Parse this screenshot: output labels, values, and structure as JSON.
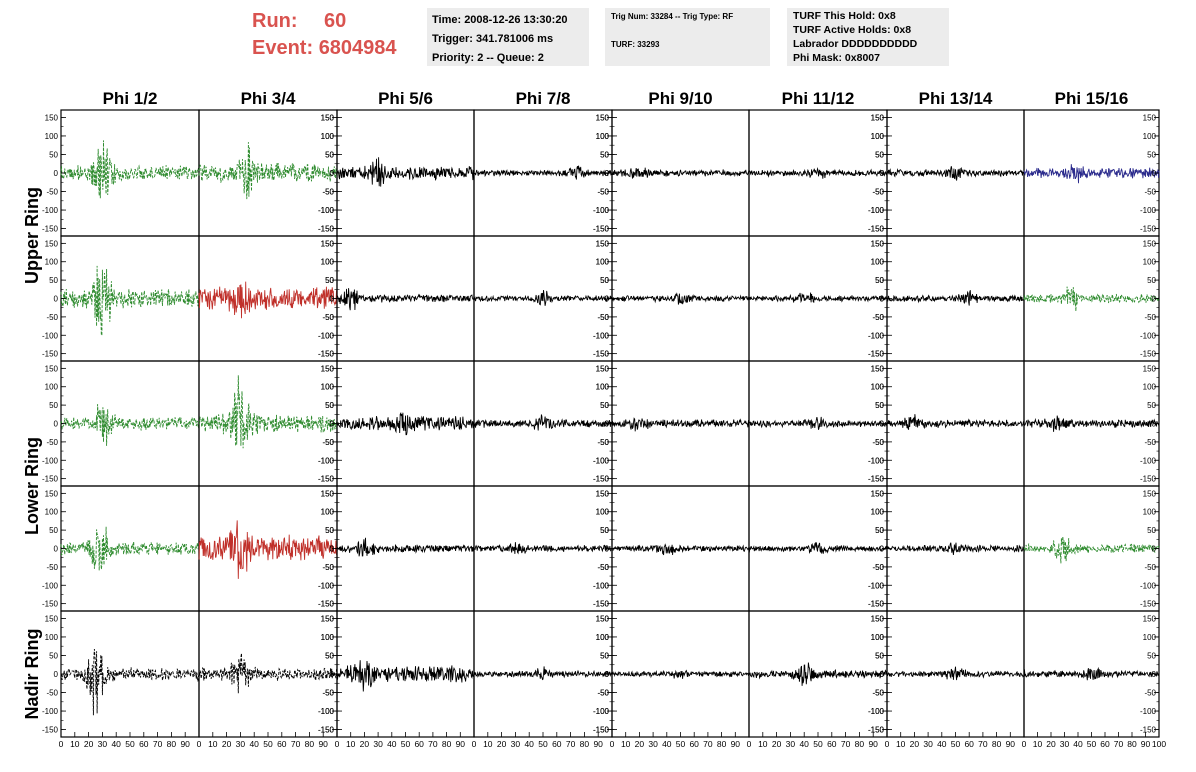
{
  "header": {
    "run_label": "Run:",
    "run_value": "60",
    "event_label": "Event:",
    "event_value": "6804984",
    "time": "Time: 2008-12-26 13:30:20",
    "trigger": "Trigger: 341.781006 ms",
    "priority": "Priority: 2 -- Queue: 2",
    "trig_num": "Trig Num: 33284 -- Trig Type: RF",
    "turf": "TURF: 33293",
    "turf_this_hold": "TURF This Hold: 0x8",
    "turf_active_holds": "TURF Active Holds: 0x8",
    "labrador": "Labrador DDDDDDDDDD",
    "phi_mask": "Phi Mask: 0x8007"
  },
  "chart_data": {
    "type": "line",
    "columns": [
      "Phi 1/2",
      "Phi 3/4",
      "Phi 5/6",
      "Phi 7/8",
      "Phi 9/10",
      "Phi 11/12",
      "Phi 13/14",
      "Phi 15/16"
    ],
    "row_labels": [
      "Upper Ring",
      "",
      "Lower Ring",
      "",
      "Nadir Ring"
    ],
    "row_label_spans": [
      {
        "label": "Upper Ring",
        "from_row": 0,
        "to_row": 1
      },
      {
        "label": "Lower Ring",
        "from_row": 2,
        "to_row": 3
      },
      {
        "label": "Nadir Ring",
        "from_row": 4,
        "to_row": 4
      }
    ],
    "xlim": [
      0,
      100
    ],
    "ylim": [
      -170,
      170
    ],
    "x_ticks": [
      "0",
      "10",
      "20",
      "30",
      "40",
      "50",
      "60",
      "70",
      "80",
      "90",
      "100"
    ],
    "y_ticks": [
      "150",
      "100",
      "50",
      "0",
      "-50",
      "-100",
      "-150"
    ],
    "y_tick_values": [
      150,
      100,
      50,
      0,
      -50,
      -100,
      -150
    ],
    "colors": {
      "trigger_dashed": "#2e8b2e",
      "this_hold": "#c0302a",
      "blue": "#2a2a8c",
      "normal": "#000000",
      "nadir_dashed": "#000000"
    },
    "cells": [
      [
        {
          "color": "trigger_dashed",
          "dashed": true,
          "amp": 22,
          "peak": 130,
          "peak_x": 30
        },
        {
          "color": "trigger_dashed",
          "dashed": true,
          "amp": 30,
          "peak": 90,
          "peak_x": 35
        },
        {
          "color": "normal",
          "dashed": false,
          "amp": 20,
          "peak": 50,
          "peak_x": 30
        },
        {
          "color": "normal",
          "dashed": false,
          "amp": 9,
          "peak": 25,
          "peak_x": 75
        },
        {
          "color": "normal",
          "dashed": false,
          "amp": 10,
          "peak": 25,
          "peak_x": 20
        },
        {
          "color": "normal",
          "dashed": false,
          "amp": 9,
          "peak": 20,
          "peak_x": 50
        },
        {
          "color": "normal",
          "dashed": false,
          "amp": 10,
          "peak": 25,
          "peak_x": 50
        },
        {
          "color": "blue",
          "dashed": false,
          "amp": 15,
          "peak": 40,
          "peak_x": 40
        }
      ],
      [
        {
          "color": "trigger_dashed",
          "dashed": true,
          "amp": 28,
          "peak": 150,
          "peak_x": 30
        },
        {
          "color": "this_hold",
          "dashed": false,
          "amp": 35,
          "peak": 80,
          "peak_x": 30
        },
        {
          "color": "normal",
          "dashed": false,
          "amp": 12,
          "peak": 40,
          "peak_x": 10
        },
        {
          "color": "normal",
          "dashed": false,
          "amp": 9,
          "peak": 25,
          "peak_x": 50
        },
        {
          "color": "normal",
          "dashed": false,
          "amp": 9,
          "peak": 25,
          "peak_x": 50
        },
        {
          "color": "normal",
          "dashed": false,
          "amp": 9,
          "peak": 25,
          "peak_x": 40
        },
        {
          "color": "normal",
          "dashed": false,
          "amp": 9,
          "peak": 25,
          "peak_x": 60
        },
        {
          "color": "trigger_dashed",
          "dashed": true,
          "amp": 13,
          "peak": 50,
          "peak_x": 35
        }
      ],
      [
        {
          "color": "trigger_dashed",
          "dashed": true,
          "amp": 20,
          "peak": 80,
          "peak_x": 30
        },
        {
          "color": "trigger_dashed",
          "dashed": true,
          "amp": 30,
          "peak": 150,
          "peak_x": 30
        },
        {
          "color": "normal",
          "dashed": false,
          "amp": 22,
          "peak": 50,
          "peak_x": 50
        },
        {
          "color": "normal",
          "dashed": false,
          "amp": 12,
          "peak": 30,
          "peak_x": 50
        },
        {
          "color": "normal",
          "dashed": false,
          "amp": 12,
          "peak": 25,
          "peak_x": 20
        },
        {
          "color": "normal",
          "dashed": false,
          "amp": 10,
          "peak": 25,
          "peak_x": 50
        },
        {
          "color": "normal",
          "dashed": false,
          "amp": 12,
          "peak": 30,
          "peak_x": 20
        },
        {
          "color": "normal",
          "dashed": false,
          "amp": 12,
          "peak": 30,
          "peak_x": 25
        }
      ],
      [
        {
          "color": "trigger_dashed",
          "dashed": true,
          "amp": 20,
          "peak": 120,
          "peak_x": 28
        },
        {
          "color": "this_hold",
          "dashed": false,
          "amp": 40,
          "peak": 100,
          "peak_x": 30
        },
        {
          "color": "normal",
          "dashed": false,
          "amp": 12,
          "peak": 35,
          "peak_x": 20
        },
        {
          "color": "normal",
          "dashed": false,
          "amp": 10,
          "peak": 25,
          "peak_x": 30
        },
        {
          "color": "normal",
          "dashed": false,
          "amp": 9,
          "peak": 25,
          "peak_x": 40
        },
        {
          "color": "normal",
          "dashed": false,
          "amp": 9,
          "peak": 25,
          "peak_x": 50
        },
        {
          "color": "normal",
          "dashed": false,
          "amp": 10,
          "peak": 25,
          "peak_x": 50
        },
        {
          "color": "trigger_dashed",
          "dashed": true,
          "amp": 14,
          "peak": 60,
          "peak_x": 28
        }
      ],
      [
        {
          "color": "nadir_dashed",
          "dashed": true,
          "amp": 20,
          "peak": 130,
          "peak_x": 25
        },
        {
          "color": "nadir_dashed",
          "dashed": true,
          "amp": 20,
          "peak": 80,
          "peak_x": 30
        },
        {
          "color": "normal",
          "dashed": false,
          "amp": 25,
          "peak": 55,
          "peak_x": 20
        },
        {
          "color": "normal",
          "dashed": false,
          "amp": 9,
          "peak": 25,
          "peak_x": 50
        },
        {
          "color": "normal",
          "dashed": false,
          "amp": 8,
          "peak": 20,
          "peak_x": 50
        },
        {
          "color": "normal",
          "dashed": false,
          "amp": 12,
          "peak": 40,
          "peak_x": 40
        },
        {
          "color": "normal",
          "dashed": false,
          "amp": 9,
          "peak": 25,
          "peak_x": 50
        },
        {
          "color": "normal",
          "dashed": false,
          "amp": 10,
          "peak": 25,
          "peak_x": 50
        }
      ]
    ]
  }
}
